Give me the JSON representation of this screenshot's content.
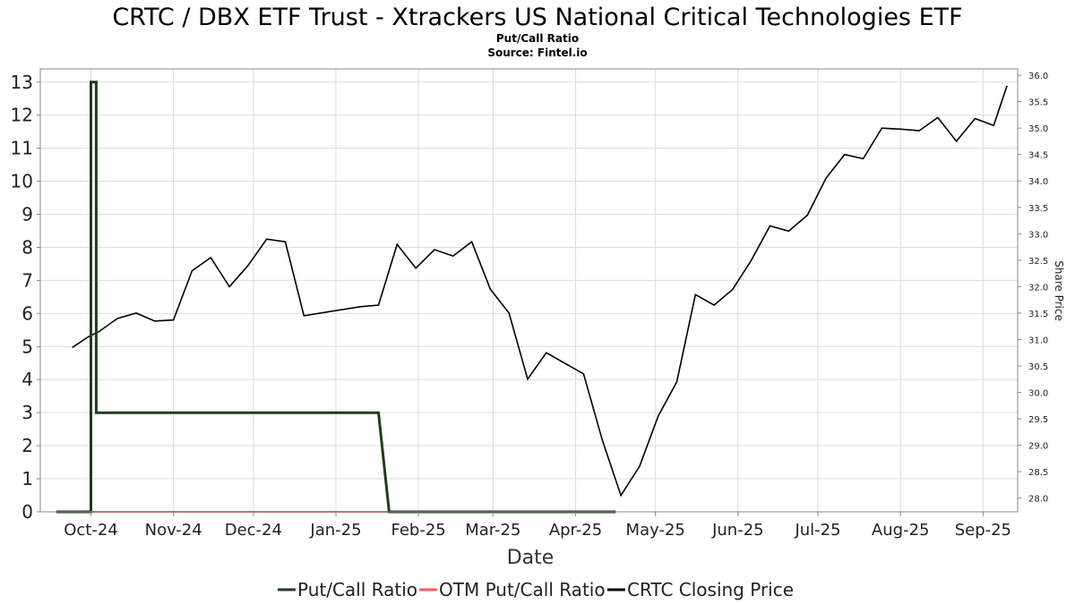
{
  "chart_data": {
    "type": "line",
    "title": "CRTC / DBX ETF Trust - Xtrackers US National Critical Technologies ETF",
    "subtitle_lines": [
      "Put/Call Ratio",
      "Source: Fintel.io"
    ],
    "xlabel": "Date",
    "ylabel": "",
    "y2label": "Share Price",
    "x_tick_labels": [
      "Oct-24",
      "Nov-24",
      "Dec-24",
      "Jan-25",
      "Feb-25",
      "Mar-25",
      "Apr-25",
      "May-25",
      "Jun-25",
      "Jul-25",
      "Aug-25",
      "Sep-25"
    ],
    "x_tick_dates": [
      "2024-10-01",
      "2024-11-01",
      "2024-12-01",
      "2025-01-01",
      "2025-02-01",
      "2025-03-01",
      "2025-04-01",
      "2025-05-01",
      "2025-06-01",
      "2025-07-01",
      "2025-08-01",
      "2025-09-01"
    ],
    "xlim": [
      "2024-09-12",
      "2025-09-14"
    ],
    "ylim": [
      0,
      13.4
    ],
    "y_ticks": [
      "0",
      "1",
      "2",
      "3",
      "4",
      "5",
      "6",
      "7",
      "8",
      "9",
      "10",
      "11",
      "12",
      "13"
    ],
    "y2lim": [
      27.74,
      36.12
    ],
    "y2_ticks": [
      "28.0",
      "28.5",
      "29.0",
      "29.5",
      "30.0",
      "30.5",
      "31.0",
      "31.5",
      "32.0",
      "32.5",
      "33.0",
      "33.5",
      "34.0",
      "34.5",
      "35.0",
      "35.5",
      "36.0"
    ],
    "grid": true,
    "legend_placement": "bottom",
    "series": [
      {
        "name": "Put/Call Ratio",
        "color": "#1e3d1e",
        "axis": "left",
        "points": [
          [
            "2024-09-18",
            0
          ],
          [
            "2024-10-01",
            0
          ],
          [
            "2024-10-01",
            13
          ],
          [
            "2024-10-03",
            13
          ],
          [
            "2024-10-03",
            3
          ],
          [
            "2025-01-17",
            3
          ],
          [
            "2025-01-21",
            0
          ],
          [
            "2025-04-16",
            0
          ]
        ]
      },
      {
        "name": "OTM Put/Call Ratio",
        "color": "#ff5a5a",
        "axis": "left",
        "points": [
          [
            "2024-09-18",
            0
          ],
          [
            "2025-04-16",
            0
          ]
        ]
      },
      {
        "name": "CRTC Closing Price",
        "color": "#000000",
        "axis": "right",
        "points": [
          [
            "2024-09-24",
            30.85
          ],
          [
            "2024-09-30",
            31.05
          ],
          [
            "2024-10-04",
            31.15
          ],
          [
            "2024-10-11",
            31.4
          ],
          [
            "2024-10-18",
            31.5
          ],
          [
            "2024-10-25",
            31.35
          ],
          [
            "2024-11-01",
            31.37
          ],
          [
            "2024-11-08",
            32.3
          ],
          [
            "2024-11-15",
            32.55
          ],
          [
            "2024-11-22",
            32.0
          ],
          [
            "2024-11-29",
            32.4
          ],
          [
            "2024-12-06",
            32.9
          ],
          [
            "2024-12-13",
            32.85
          ],
          [
            "2024-12-20",
            31.45
          ],
          [
            "2025-01-10",
            31.62
          ],
          [
            "2025-01-17",
            31.65
          ],
          [
            "2025-01-24",
            32.8
          ],
          [
            "2025-01-31",
            32.35
          ],
          [
            "2025-02-07",
            32.7
          ],
          [
            "2025-02-14",
            32.58
          ],
          [
            "2025-02-21",
            32.85
          ],
          [
            "2025-02-28",
            31.95
          ],
          [
            "2025-03-07",
            31.5
          ],
          [
            "2025-03-14",
            30.25
          ],
          [
            "2025-03-21",
            30.75
          ],
          [
            "2025-04-04",
            30.35
          ],
          [
            "2025-04-11",
            29.1
          ],
          [
            "2025-04-18",
            28.05
          ],
          [
            "2025-04-25",
            28.6
          ],
          [
            "2025-05-02",
            29.55
          ],
          [
            "2025-05-09",
            30.2
          ],
          [
            "2025-05-16",
            31.85
          ],
          [
            "2025-05-23",
            31.65
          ],
          [
            "2025-05-30",
            31.95
          ],
          [
            "2025-06-06",
            32.5
          ],
          [
            "2025-06-13",
            33.15
          ],
          [
            "2025-06-20",
            33.05
          ],
          [
            "2025-06-27",
            33.35
          ],
          [
            "2025-07-04",
            34.05
          ],
          [
            "2025-07-11",
            34.5
          ],
          [
            "2025-07-18",
            34.42
          ],
          [
            "2025-07-25",
            35.0
          ],
          [
            "2025-08-01",
            34.98
          ],
          [
            "2025-08-08",
            34.95
          ],
          [
            "2025-08-15",
            35.2
          ],
          [
            "2025-08-22",
            34.75
          ],
          [
            "2025-08-29",
            35.18
          ],
          [
            "2025-09-05",
            35.05
          ],
          [
            "2025-09-10",
            35.8
          ]
        ]
      }
    ]
  }
}
